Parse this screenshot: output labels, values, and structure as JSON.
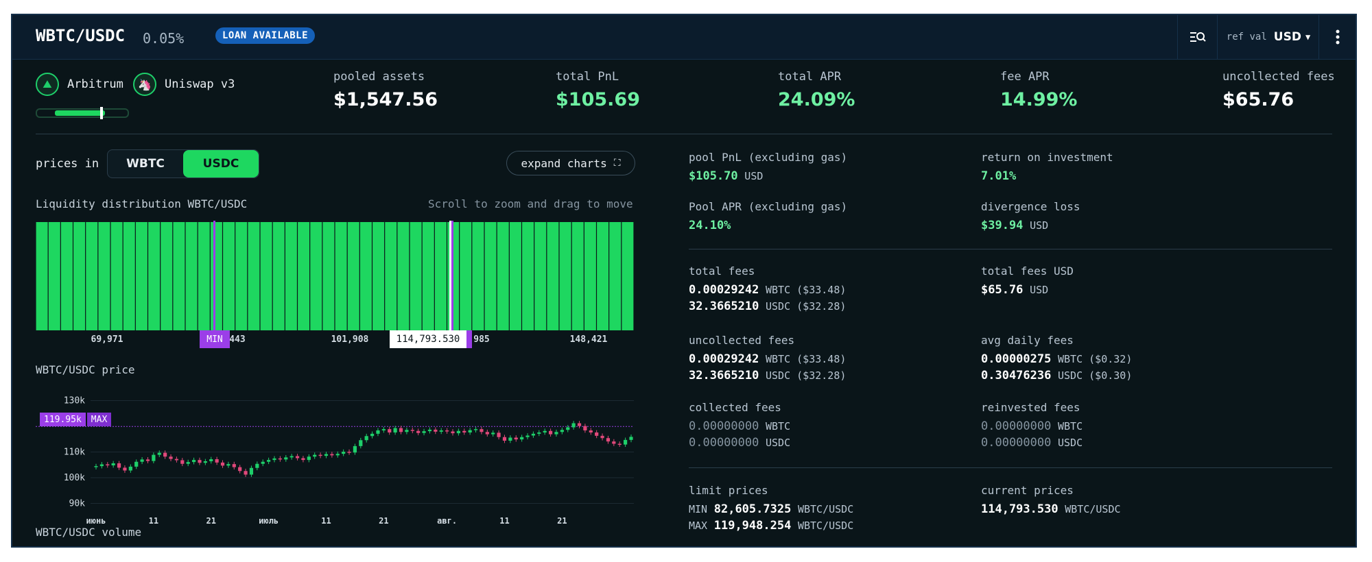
{
  "header": {
    "pair": "WBTC/USDC",
    "fee_tier": "0.05%",
    "badge": "LOAN AVAILABLE",
    "ref_val_label": "ref val",
    "ref_val_value": "USD"
  },
  "network": {
    "chain": "Arbitrum",
    "dex": "Uniswap v3",
    "range_fill": 0.57
  },
  "stats": [
    {
      "label": "pooled assets",
      "value": "$1,547.56"
    },
    {
      "label": "total PnL",
      "value": "$105.69"
    },
    {
      "label": "total APR",
      "value": "24.09%"
    },
    {
      "label": "fee APR",
      "value": "14.99%"
    },
    {
      "label": "uncollected fees",
      "value": "$65.76"
    }
  ],
  "controls": {
    "prices_in": "prices in",
    "toggle": [
      "WBTC",
      "USDC"
    ],
    "selected": "USDC",
    "expand": "expand charts"
  },
  "liquidity": {
    "title": "Liquidity distribution WBTC/USDC",
    "hint": "Scroll to zoom and drag to move",
    "ticks": [
      "69,971",
      "443",
      "101,908",
      "985",
      "148,421"
    ],
    "min_tag": "MIN",
    "current_tag": "114,793.530"
  },
  "price_chart": {
    "title": "WBTC/USDC price",
    "y_ticks": [
      "130k",
      "110k",
      "100k",
      "90k"
    ],
    "x_ticks": [
      "июнь",
      "11",
      "21",
      "июль",
      "11",
      "21",
      "авг.",
      "11",
      "21"
    ],
    "max_value": "119.95k",
    "max_tag": "MAX",
    "volume_title": "WBTC/USDC volume"
  },
  "chart_data": {
    "type": "candlestick",
    "title": "WBTC/USDC price",
    "ylim": [
      88000,
      132000
    ],
    "max_line": 119948,
    "closes": [
      104500,
      105200,
      104800,
      105600,
      103900,
      102800,
      104300,
      106200,
      107100,
      106500,
      108900,
      109700,
      108200,
      107300,
      106800,
      105400,
      106100,
      106900,
      105800,
      106400,
      107200,
      105900,
      104700,
      105300,
      104100,
      102600,
      101200,
      103800,
      105400,
      106200,
      106900,
      107500,
      107100,
      107900,
      108400,
      107600,
      106900,
      108200,
      108900,
      108500,
      109200,
      108700,
      109300,
      110100,
      109800,
      112300,
      114600,
      116200,
      117100,
      118400,
      118900,
      117600,
      119300,
      117800,
      118600,
      118200,
      117400,
      118100,
      118700,
      117900,
      118400,
      118000,
      117300,
      118200,
      117600,
      118500,
      118900,
      117800,
      116900,
      117500,
      115800,
      114400,
      115600,
      114900,
      115800,
      116400,
      117100,
      117600,
      118200,
      116900,
      117800,
      118600,
      119600,
      121200,
      120100,
      118400,
      117600,
      116300,
      115400,
      114100,
      113200,
      112900,
      114700,
      115900
    ],
    "opens": [
      104100,
      104500,
      105200,
      104800,
      105600,
      103900,
      102800,
      104300,
      106200,
      107100,
      106500,
      108900,
      109700,
      108200,
      107300,
      106800,
      105400,
      106100,
      106900,
      105800,
      106400,
      107200,
      105900,
      104700,
      105300,
      104100,
      102600,
      101200,
      103800,
      105400,
      106200,
      106900,
      107500,
      107100,
      107900,
      108400,
      107600,
      106900,
      108200,
      108900,
      108500,
      109200,
      108700,
      109300,
      110100,
      109800,
      112300,
      114600,
      116200,
      117100,
      118400,
      118900,
      117600,
      119300,
      117800,
      118600,
      118200,
      117400,
      118100,
      118700,
      117900,
      118400,
      118000,
      117300,
      118200,
      117600,
      118500,
      118900,
      117800,
      116900,
      117500,
      115800,
      114400,
      115600,
      114900,
      115800,
      116400,
      117100,
      117600,
      118200,
      116900,
      117800,
      118600,
      119600,
      121200,
      120100,
      118400,
      117600,
      116300,
      115400,
      114100,
      113200,
      112900,
      114700
    ]
  },
  "metrics": {
    "pool_pnl": {
      "label": "pool PnL (excluding gas)",
      "value": "$105.70",
      "unit": "USD"
    },
    "roi": {
      "label": "return on investment",
      "value": "7.01%"
    },
    "pool_apr": {
      "label": "Pool APR (excluding gas)",
      "value": "24.10%"
    },
    "divergence": {
      "label": "divergence loss",
      "value": "$39.94",
      "unit": "USD"
    },
    "total_fees": {
      "label": "total fees",
      "l1v": "0.00029242",
      "l1u": "WBTC ($33.48)",
      "l2v": "32.3665210",
      "l2u": "USDC ($32.28)"
    },
    "total_fees_usd": {
      "label": "total fees USD",
      "value": "$65.76",
      "unit": "USD"
    },
    "uncollected": {
      "label": "uncollected fees",
      "l1v": "0.00029242",
      "l1u": "WBTC ($33.48)",
      "l2v": "32.3665210",
      "l2u": "USDC ($32.28)"
    },
    "avg_daily": {
      "label": "avg daily fees",
      "l1v": "0.00000275",
      "l1u": "WBTC ($0.32)",
      "l2v": "0.30476236",
      "l2u": "USDC ($0.30)"
    },
    "collected": {
      "label": "collected fees",
      "l1v": "0.00000000",
      "l1u": "WBTC",
      "l2v": "0.00000000",
      "l2u": "USDC"
    },
    "reinvested": {
      "label": "reinvested fees",
      "l1v": "0.00000000",
      "l1u": "WBTC",
      "l2v": "0.00000000",
      "l2u": "USDC"
    },
    "limit_prices": {
      "label": "limit prices",
      "min_lbl": "MIN",
      "min_val": "82,605.7325",
      "max_lbl": "MAX",
      "max_val": "119,948.254",
      "unit": "WBTC/USDC"
    },
    "current_prices": {
      "label": "current prices",
      "value": "114,793.530",
      "unit": "WBTC/USDC"
    }
  },
  "colors": {
    "accent": "#1ed760",
    "purple": "#9b3ee8",
    "candle_up": "#1ecf6a",
    "candle_down": "#e0487a"
  }
}
